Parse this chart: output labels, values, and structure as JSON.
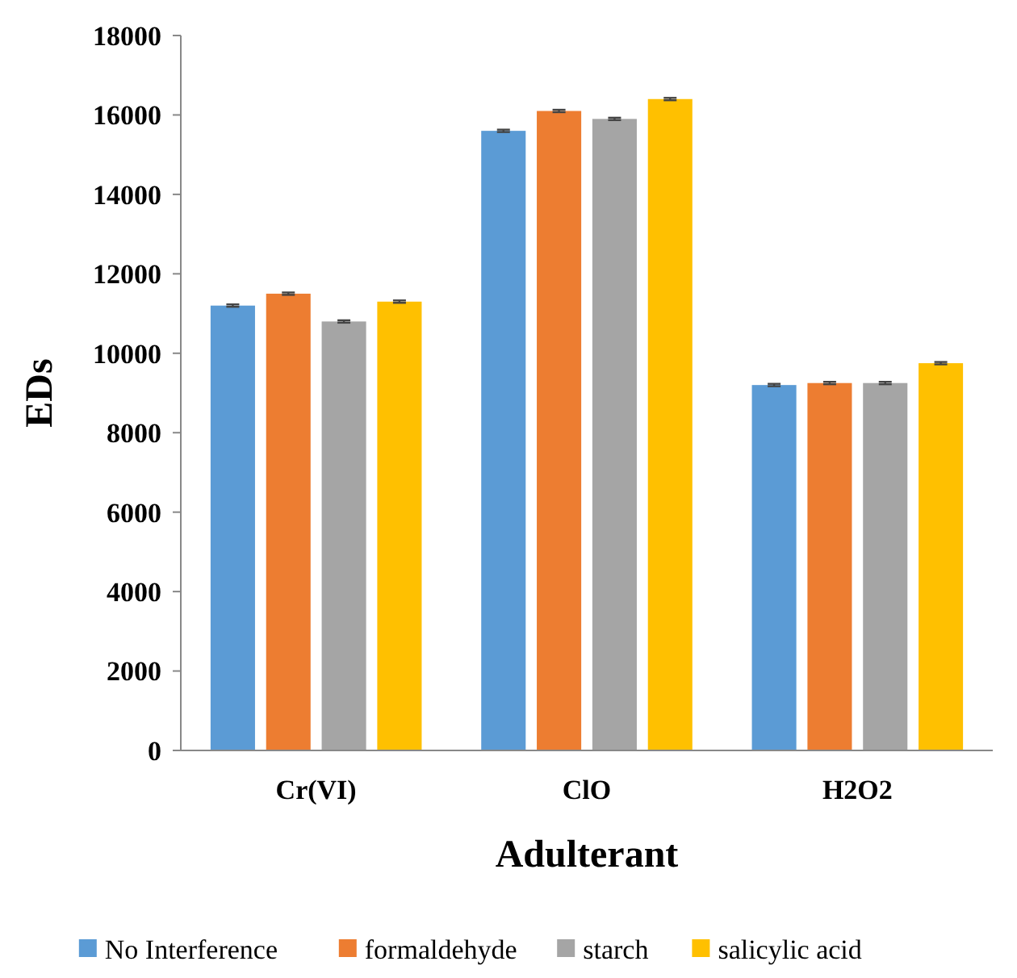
{
  "chart_data": {
    "type": "bar",
    "xlabel": "Adulterant",
    "ylabel": "EDs",
    "categories": [
      "Cr(VI)",
      "ClO",
      "H2O2"
    ],
    "series": [
      {
        "name": "No Interference",
        "color": "#5b9bd5",
        "values": [
          11200,
          15600,
          9200
        ],
        "errors": [
          30,
          30,
          30
        ]
      },
      {
        "name": "formaldehyde",
        "color": "#ed7d31",
        "values": [
          11500,
          16100,
          9250
        ],
        "errors": [
          30,
          30,
          30
        ]
      },
      {
        "name": "starch",
        "color": "#a5a5a5",
        "values": [
          10800,
          15900,
          9250
        ],
        "errors": [
          30,
          30,
          30
        ]
      },
      {
        "name": "salicylic acid",
        "color": "#ffc000",
        "values": [
          11300,
          16400,
          9750
        ],
        "errors": [
          30,
          30,
          30
        ]
      }
    ],
    "ylim": [
      0,
      18000
    ],
    "yticks": [
      0,
      2000,
      4000,
      6000,
      8000,
      10000,
      12000,
      14000,
      16000,
      18000
    ],
    "grid": false,
    "legend": "bottom"
  }
}
